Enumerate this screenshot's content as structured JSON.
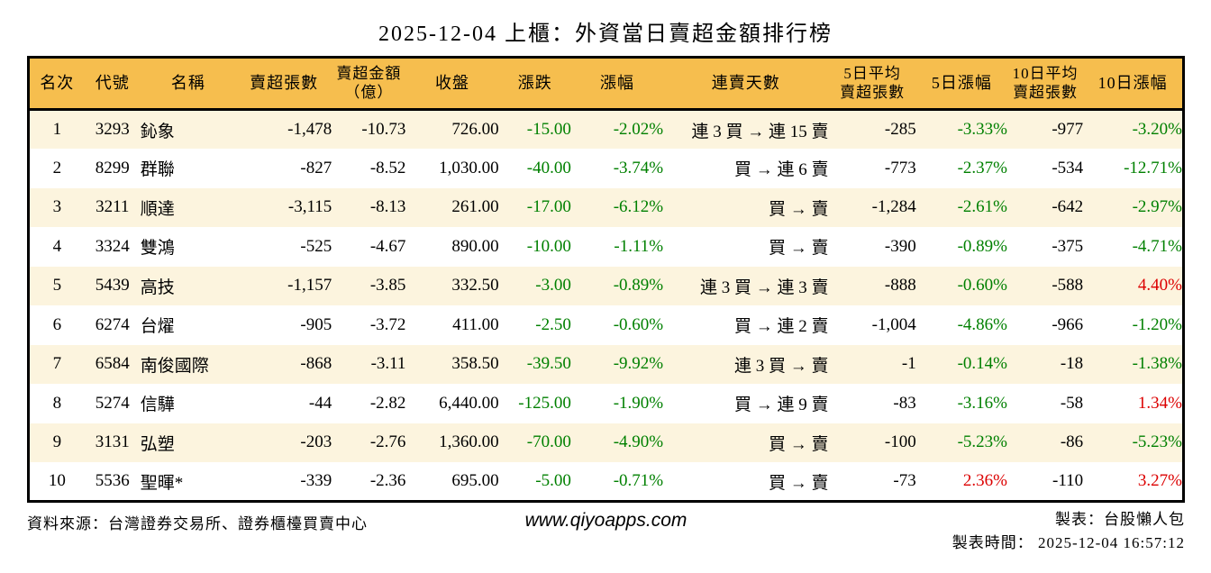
{
  "title": "2025-12-04 上櫃：外資當日賣超金額排行榜",
  "colors": {
    "header_bg": "#F6BE4E",
    "stripe_bg": "#FCF4DE",
    "down_green": "#008000",
    "up_red": "#DC0000",
    "table_border": "#000000"
  },
  "chart_data": {
    "type": "table",
    "title": "2025-12-04 上櫃：外資當日賣超金額排行榜",
    "columns": [
      {
        "key": "rank",
        "label": "名次"
      },
      {
        "key": "code",
        "label": "代號"
      },
      {
        "key": "name",
        "label": "名稱"
      },
      {
        "key": "sell-volume",
        "label": "賣超張數"
      },
      {
        "key": "sell-amount",
        "label": "賣超金額（億）",
        "lines": [
          "賣超金額",
          "（億）"
        ]
      },
      {
        "key": "close",
        "label": "收盤"
      },
      {
        "key": "change",
        "label": "漲跌"
      },
      {
        "key": "change-pct",
        "label": "漲幅"
      },
      {
        "key": "streak",
        "label": "連賣天數"
      },
      {
        "key": "avg5-volume",
        "label": "5日平均賣超張數",
        "lines": [
          "5日平均",
          "賣超張數"
        ]
      },
      {
        "key": "pct5",
        "label": "5日漲幅"
      },
      {
        "key": "avg10-volume",
        "label": "10日平均賣超張數",
        "lines": [
          "10日平均",
          "賣超張數"
        ]
      },
      {
        "key": "pct10",
        "label": "10日漲幅"
      }
    ],
    "rows": [
      [
        "1",
        "3293",
        "鈊象",
        "-1,478",
        "-10.73",
        "726.00",
        "-15.00",
        "-2.02%",
        "連 3 買 → 連 15 賣",
        "-285",
        "-3.33%",
        "-977",
        "-3.20%"
      ],
      [
        "2",
        "8299",
        "群聯",
        "-827",
        "-8.52",
        "1,030.00",
        "-40.00",
        "-3.74%",
        "買 → 連 6 賣",
        "-773",
        "-2.37%",
        "-534",
        "-12.71%"
      ],
      [
        "3",
        "3211",
        "順達",
        "-3,115",
        "-8.13",
        "261.00",
        "-17.00",
        "-6.12%",
        "買 → 賣",
        "-1,284",
        "-2.61%",
        "-642",
        "-2.97%"
      ],
      [
        "4",
        "3324",
        "雙鴻",
        "-525",
        "-4.67",
        "890.00",
        "-10.00",
        "-1.11%",
        "買 → 賣",
        "-390",
        "-0.89%",
        "-375",
        "-4.71%"
      ],
      [
        "5",
        "5439",
        "高技",
        "-1,157",
        "-3.85",
        "332.50",
        "-3.00",
        "-0.89%",
        "連 3 買 → 連 3 賣",
        "-888",
        "-0.60%",
        "-588",
        "4.40%"
      ],
      [
        "6",
        "6274",
        "台燿",
        "-905",
        "-3.72",
        "411.00",
        "-2.50",
        "-0.60%",
        "買 → 連 2 賣",
        "-1,004",
        "-4.86%",
        "-966",
        "-1.20%"
      ],
      [
        "7",
        "6584",
        "南俊國際",
        "-868",
        "-3.11",
        "358.50",
        "-39.50",
        "-9.92%",
        "連 3 買 → 賣",
        "-1",
        "-0.14%",
        "-18",
        "-1.38%"
      ],
      [
        "8",
        "5274",
        "信驊",
        "-44",
        "-2.82",
        "6,440.00",
        "-125.00",
        "-1.90%",
        "買 → 連 9 賣",
        "-83",
        "-3.16%",
        "-58",
        "1.34%"
      ],
      [
        "9",
        "3131",
        "弘塑",
        "-203",
        "-2.76",
        "1,360.00",
        "-70.00",
        "-4.90%",
        "買 → 賣",
        "-100",
        "-5.23%",
        "-86",
        "-5.23%"
      ],
      [
        "10",
        "5536",
        "聖暉*",
        "-339",
        "-2.36",
        "695.00",
        "-5.00",
        "-0.71%",
        "買 → 賣",
        "-73",
        "2.36%",
        "-110",
        "3.27%"
      ]
    ],
    "notes": {
      "negative_color": "green",
      "positive_color": "red"
    }
  },
  "footer": {
    "source": "資料來源：台灣證券交易所、證券櫃檯買賣中心",
    "website": "www.qiyoapps.com",
    "author": "製表：台股懶人包",
    "generated": "製表時間： 2025-12-04 16:57:12"
  }
}
